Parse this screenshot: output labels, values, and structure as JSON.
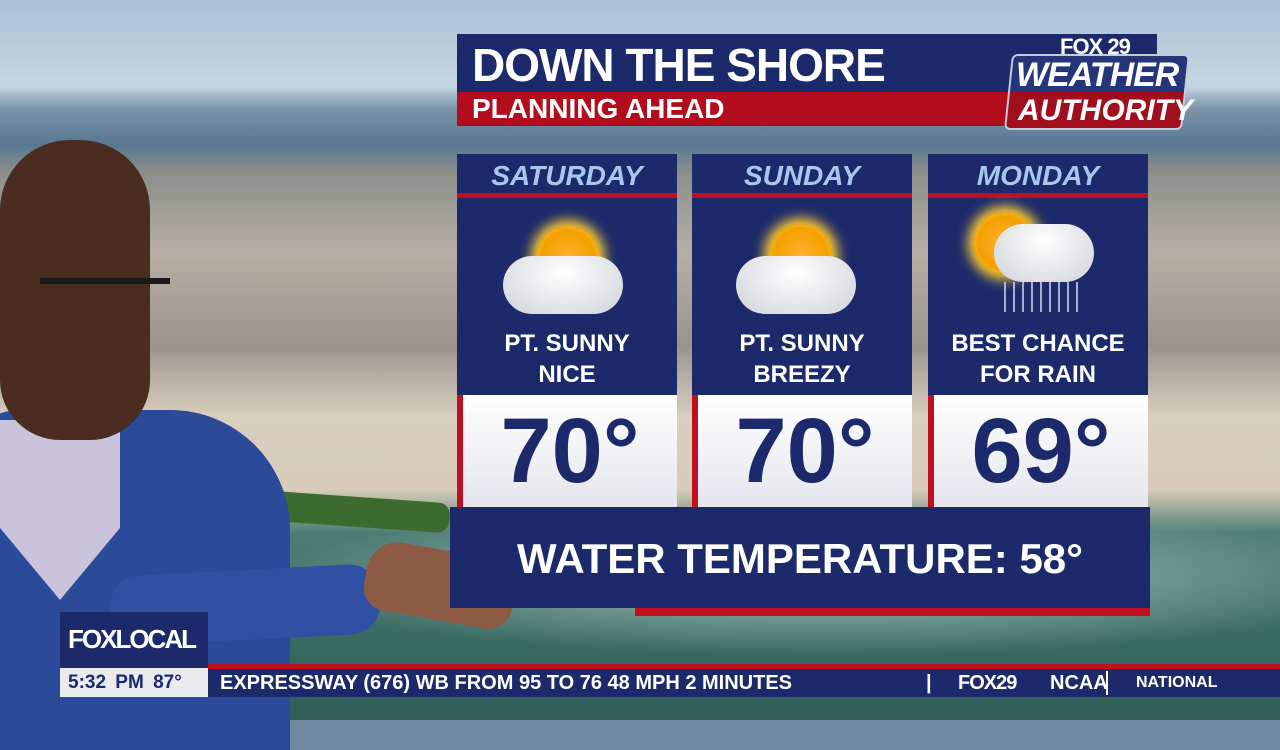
{
  "header": {
    "title": "DOWN THE SHORE",
    "subtitle": "PLANNING AHEAD"
  },
  "logo": {
    "station": "FOX 29",
    "line1": "WEATHER",
    "line2": "AUTHORITY"
  },
  "forecast": [
    {
      "day": "SATURDAY",
      "icon": "partly-sunny-icon",
      "condition_line1": "PT. SUNNY",
      "condition_line2": "NICE",
      "temp": "70°"
    },
    {
      "day": "SUNDAY",
      "icon": "partly-sunny-icon",
      "condition_line1": "PT.  SUNNY",
      "condition_line2": "BREEZY",
      "temp": "70°"
    },
    {
      "day": "MONDAY",
      "icon": "sun-cloud-rain-icon",
      "condition_line1": "BEST CHANCE",
      "condition_line2": "FOR RAIN",
      "temp": "69°"
    }
  ],
  "water": {
    "label": "WATER TEMPERATURE: 58°"
  },
  "bug": {
    "label": "FOXLOCAL"
  },
  "status": {
    "time": "5:32 PM",
    "temp": "87°"
  },
  "ticker": {
    "text": "EXPRESSWAY (676) WB FROM 95 TO 76 48 MPH  2 MINUTES",
    "separator": "|",
    "brand": "FOX29",
    "next": "NCAA",
    "section": "NATIONAL"
  },
  "colors": {
    "navy": "#1c2a6b",
    "red": "#c0101f",
    "day_text": "#a9c7ee"
  }
}
